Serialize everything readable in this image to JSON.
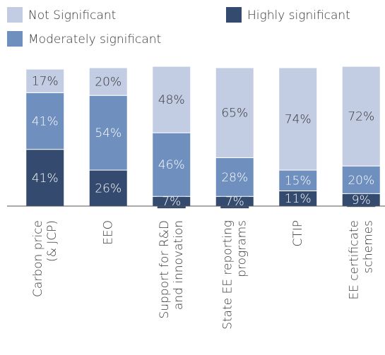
{
  "chart_data": {
    "type": "stacked-bar",
    "categories": [
      [
        "Carbon price",
        "(& JCP)"
      ],
      [
        "EEO"
      ],
      [
        "Support for R&D",
        "and innovation"
      ],
      [
        "State EE reporting",
        "programs"
      ],
      [
        "CTIP"
      ],
      [
        "EE certificate",
        "schemes"
      ]
    ],
    "series": [
      {
        "name": "Highly significant",
        "color": "#344a6e",
        "values": [
          41,
          26,
          7,
          7,
          11,
          9
        ],
        "value_labels": [
          "41%",
          "26%",
          "7%",
          "7%",
          "11%",
          "9%"
        ]
      },
      {
        "name": "Moderately significant",
        "color": "#6f8fbf",
        "values": [
          41,
          54,
          46,
          28,
          15,
          20
        ],
        "value_labels": [
          "41%",
          "54%",
          "46%",
          "28%",
          "15%",
          "20%"
        ]
      },
      {
        "name": "Not Significant",
        "color": "#c2cde3",
        "values": [
          17,
          20,
          48,
          65,
          74,
          72
        ],
        "value_labels": [
          "17%",
          "20%",
          "48%",
          "65%",
          "74%",
          "72%"
        ]
      }
    ],
    "ylim": [
      0,
      100
    ]
  }
}
